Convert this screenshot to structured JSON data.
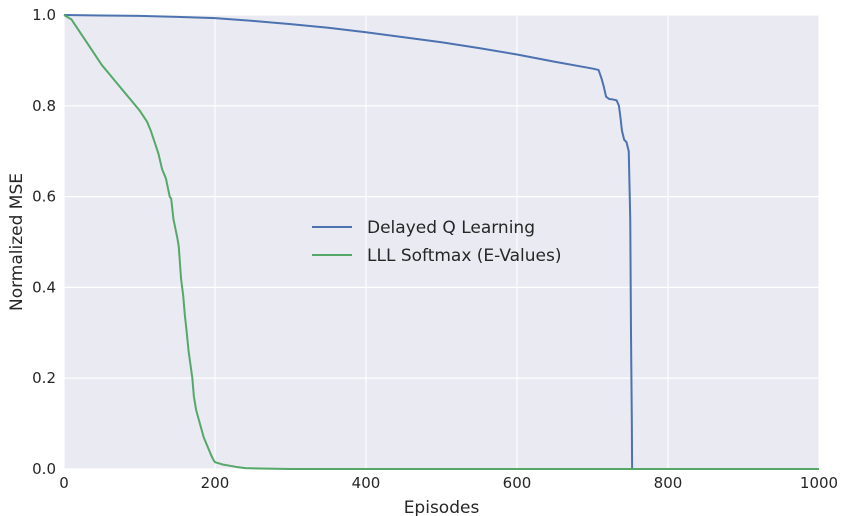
{
  "chart_data": {
    "type": "line",
    "xlabel": "Episodes",
    "ylabel": "Normalized MSE",
    "xlim": [
      0,
      1000
    ],
    "ylim": [
      0,
      1
    ],
    "x_ticks": [
      "0",
      "200",
      "400",
      "600",
      "800",
      "1000"
    ],
    "y_ticks": [
      "0.0",
      "0.2",
      "0.4",
      "0.6",
      "0.8",
      "1.0"
    ],
    "grid": true,
    "legend_position": "center",
    "series": [
      {
        "name": "Delayed Q Learning",
        "color": "#4c72b0",
        "x": [
          0,
          50,
          100,
          150,
          200,
          250,
          300,
          350,
          400,
          450,
          500,
          550,
          600,
          650,
          700,
          708,
          712,
          715,
          718,
          722,
          727,
          732,
          735,
          737,
          739,
          742,
          745,
          748,
          750,
          751,
          752,
          752.5,
          1000
        ],
        "y": [
          1.0,
          0.999,
          0.998,
          0.996,
          0.993,
          0.987,
          0.98,
          0.972,
          0.962,
          0.951,
          0.94,
          0.927,
          0.913,
          0.897,
          0.882,
          0.879,
          0.86,
          0.842,
          0.82,
          0.815,
          0.814,
          0.812,
          0.8,
          0.775,
          0.745,
          0.725,
          0.72,
          0.7,
          0.55,
          0.3,
          0.12,
          0.0,
          0.0
        ]
      },
      {
        "name": "LLL Softmax (E-Values)",
        "color": "#55a868",
        "x": [
          0,
          10,
          20,
          30,
          40,
          50,
          60,
          70,
          80,
          90,
          100,
          110,
          115,
          120,
          125,
          130,
          135,
          140,
          142,
          145,
          150,
          152,
          155,
          158,
          160,
          162,
          165,
          170,
          172,
          175,
          180,
          185,
          190,
          195,
          198,
          200,
          210,
          220,
          230,
          240,
          260,
          300,
          1000
        ],
        "y": [
          1.0,
          0.99,
          0.965,
          0.94,
          0.915,
          0.89,
          0.87,
          0.85,
          0.83,
          0.81,
          0.79,
          0.765,
          0.745,
          0.72,
          0.695,
          0.66,
          0.64,
          0.6,
          0.595,
          0.55,
          0.51,
          0.49,
          0.42,
          0.38,
          0.34,
          0.31,
          0.26,
          0.2,
          0.16,
          0.13,
          0.1,
          0.07,
          0.05,
          0.03,
          0.02,
          0.015,
          0.01,
          0.007,
          0.004,
          0.002,
          0.001,
          0.0,
          0.0
        ]
      }
    ]
  }
}
